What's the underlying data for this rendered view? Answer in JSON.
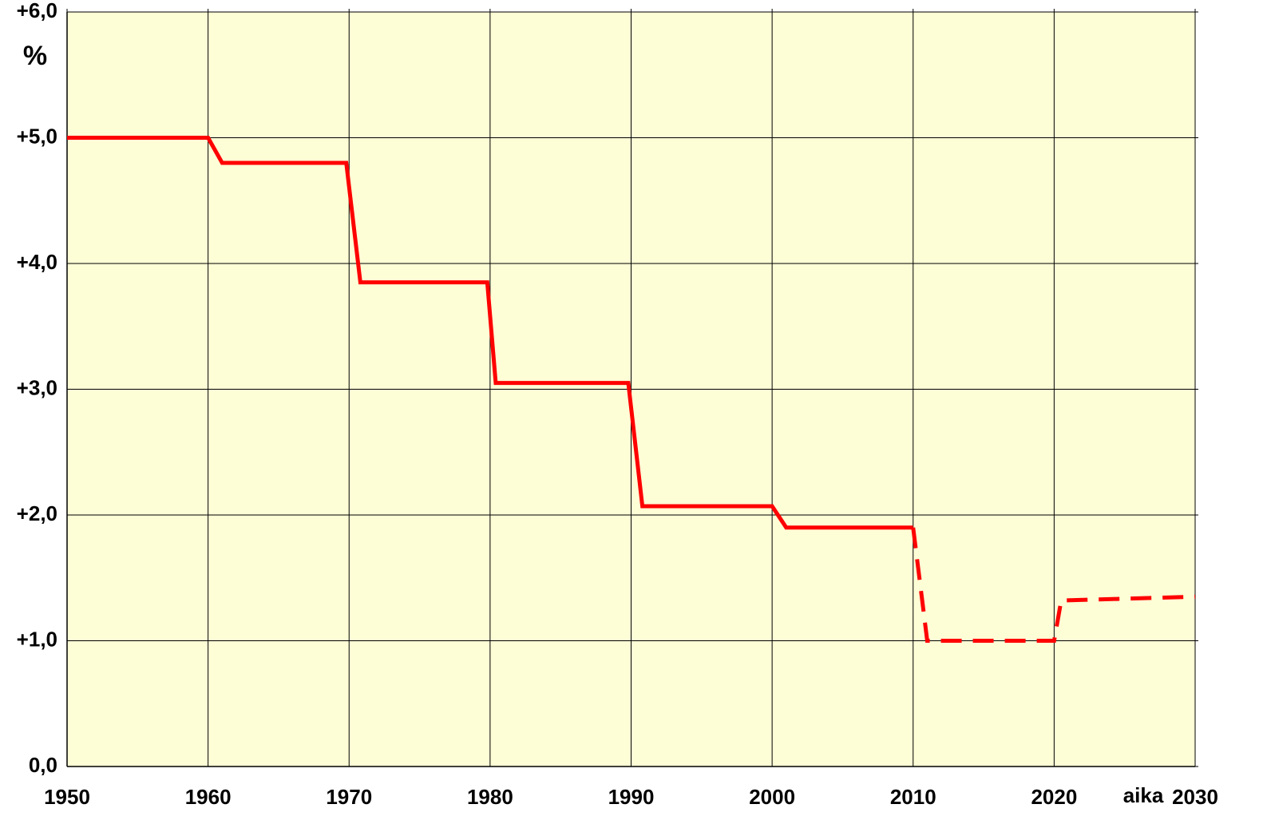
{
  "chart_data": {
    "type": "line",
    "x_label": "aika",
    "y_label": "%",
    "x": [
      1950,
      1960,
      1961,
      1969.8,
      1970.8,
      1979.8,
      1980.4,
      1989.8,
      1990.8,
      2000,
      2001,
      2010,
      2011,
      2020,
      2020.5,
      2030
    ],
    "series": [
      {
        "color": "#ff0000",
        "dashed": false,
        "values": [
          5.0,
          5.0,
          4.8,
          4.8,
          3.85,
          3.85,
          3.05,
          3.05,
          2.07,
          2.07,
          1.9,
          1.9,
          null,
          null,
          null,
          null
        ]
      },
      {
        "color": "#ff0000",
        "dashed": true,
        "values": [
          null,
          null,
          null,
          null,
          null,
          null,
          null,
          null,
          null,
          null,
          null,
          1.9,
          1.0,
          1.0,
          1.32,
          1.35
        ]
      }
    ],
    "xlim": [
      1950,
      2030
    ],
    "xticks": [
      1950,
      1960,
      1970,
      1980,
      1990,
      2000,
      2010,
      2020,
      2030
    ],
    "ylim": [
      0,
      6
    ],
    "yticks": [
      {
        "value": 0,
        "label": "0,0"
      },
      {
        "value": 1,
        "label": "+1,0"
      },
      {
        "value": 2,
        "label": "+2,0"
      },
      {
        "value": 3,
        "label": "+3,0"
      },
      {
        "value": 4,
        "label": "+4,0"
      },
      {
        "value": 5,
        "label": "+5,0"
      },
      {
        "value": 6,
        "label": "+6,0"
      }
    ],
    "grid": true,
    "background": "#fdfdd6"
  }
}
